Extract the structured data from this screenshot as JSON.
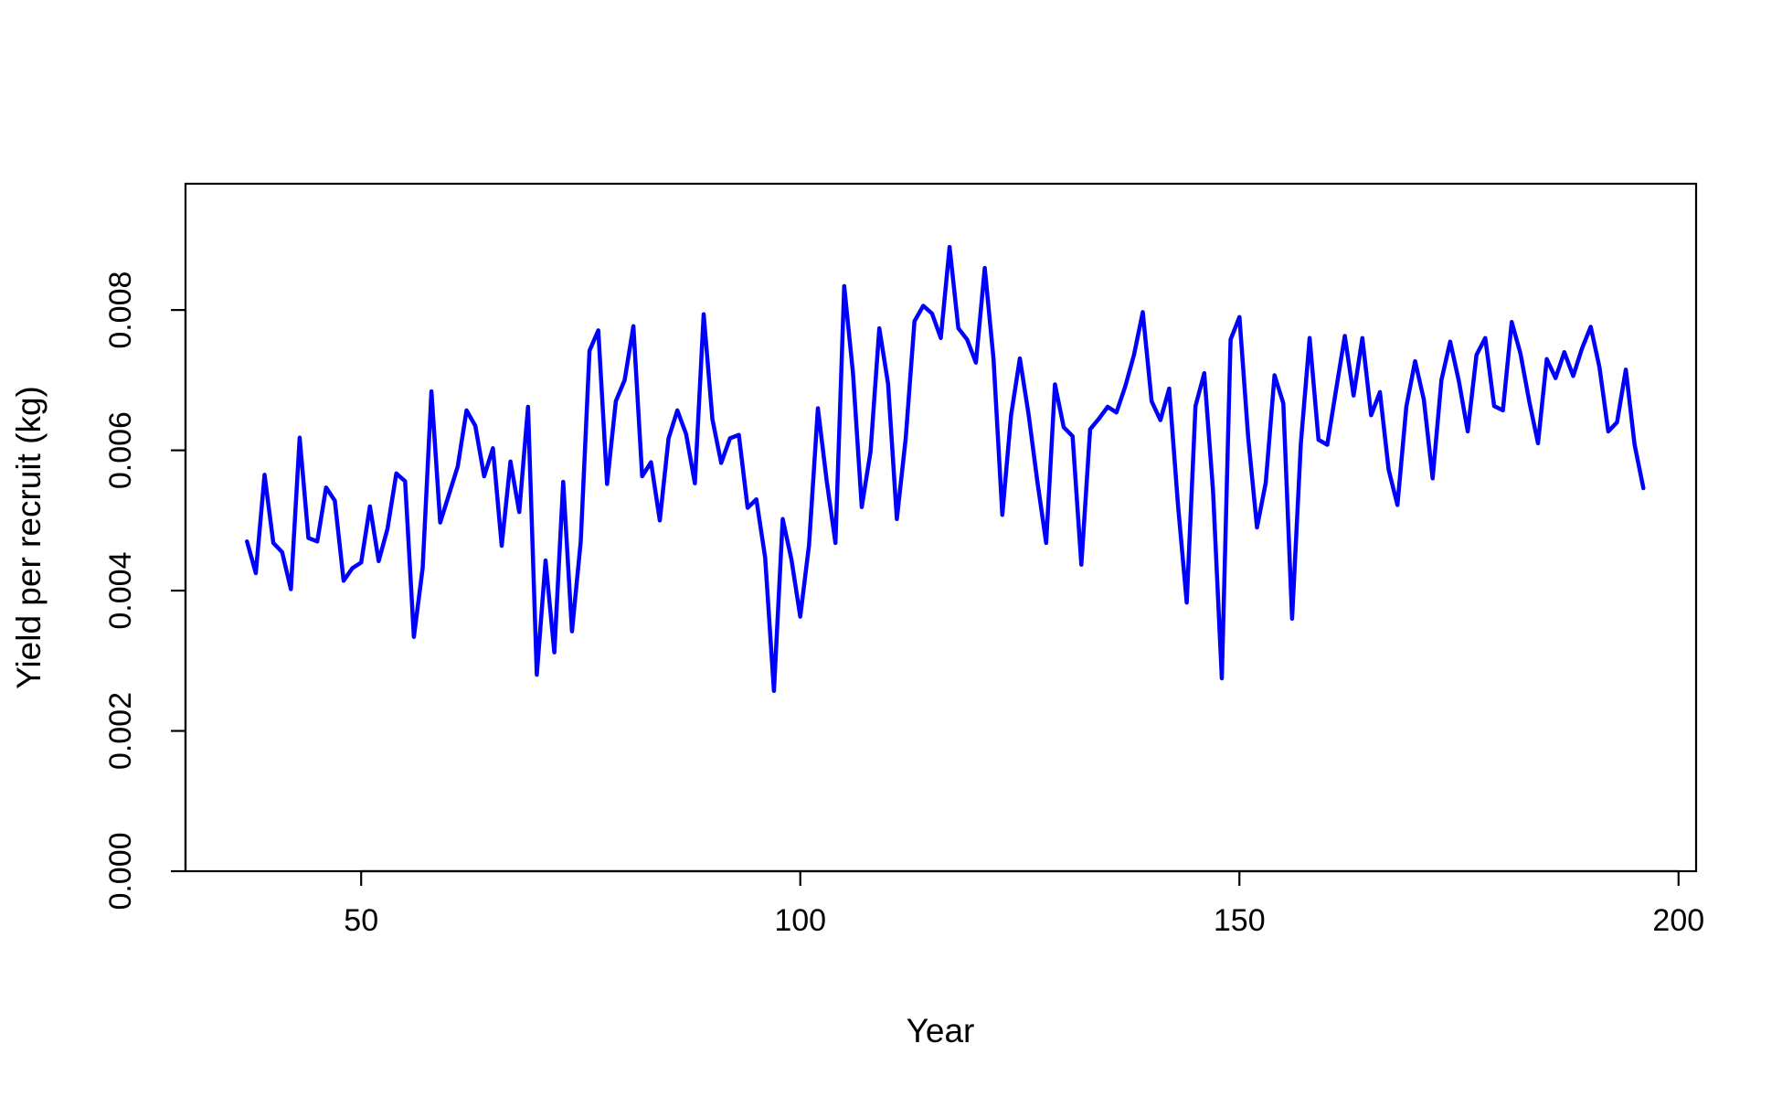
{
  "chart_data": {
    "type": "line",
    "title": "",
    "xlabel": "Year",
    "ylabel": "Yield per recruit (kg)",
    "xlim": [
      30,
      202
    ],
    "ylim": [
      0,
      0.0098
    ],
    "x_ticks": [
      50,
      100,
      150,
      200
    ],
    "x_tick_labels": [
      "50",
      "100",
      "150",
      "200"
    ],
    "y_ticks": [
      0,
      0.002,
      0.004,
      0.006,
      0.008
    ],
    "y_tick_labels": [
      "0.000",
      "0.002",
      "0.004",
      "0.006",
      "0.008"
    ],
    "grid": false,
    "legend": "none",
    "line_color": "#0000ff",
    "series": [
      {
        "x_start": 37,
        "x_step": 1,
        "values": [
          0.0047,
          0.00425,
          0.00565,
          0.00468,
          0.00455,
          0.00402,
          0.00618,
          0.00475,
          0.0047,
          0.00547,
          0.00528,
          0.00414,
          0.00432,
          0.0044,
          0.0052,
          0.00442,
          0.00488,
          0.00567,
          0.00556,
          0.00334,
          0.00432,
          0.00684,
          0.00497,
          0.00537,
          0.00577,
          0.00657,
          0.00635,
          0.00563,
          0.00603,
          0.00464,
          0.00584,
          0.00512,
          0.00662,
          0.0028,
          0.00443,
          0.00312,
          0.00555,
          0.00342,
          0.0047,
          0.00742,
          0.00771,
          0.00552,
          0.0067,
          0.007,
          0.00777,
          0.00563,
          0.00583,
          0.005,
          0.00617,
          0.00657,
          0.00623,
          0.00553,
          0.00794,
          0.00644,
          0.00582,
          0.00617,
          0.00622,
          0.00518,
          0.0053,
          0.00447,
          0.00257,
          0.00502,
          0.00444,
          0.00363,
          0.00465,
          0.0066,
          0.00557,
          0.00468,
          0.00834,
          0.0071,
          0.00519,
          0.00598,
          0.00774,
          0.00695,
          0.00502,
          0.00617,
          0.00784,
          0.00806,
          0.00795,
          0.0076,
          0.0089,
          0.00774,
          0.00758,
          0.00725,
          0.0086,
          0.0073,
          0.00508,
          0.0065,
          0.00731,
          0.00651,
          0.00555,
          0.00468,
          0.00694,
          0.00633,
          0.0062,
          0.00437,
          0.0063,
          0.00645,
          0.00662,
          0.00654,
          0.00691,
          0.00736,
          0.00797,
          0.0067,
          0.00643,
          0.00688,
          0.00523,
          0.00383,
          0.00663,
          0.0071,
          0.00542,
          0.00275,
          0.00758,
          0.0079,
          0.00618,
          0.0049,
          0.00554,
          0.00707,
          0.00667,
          0.0036,
          0.0061,
          0.0076,
          0.00615,
          0.00608,
          0.00686,
          0.00763,
          0.00678,
          0.0076,
          0.0065,
          0.00683,
          0.00572,
          0.00522,
          0.00662,
          0.00727,
          0.00672,
          0.0056,
          0.007,
          0.00755,
          0.00698,
          0.00627,
          0.00736,
          0.0076,
          0.00663,
          0.00657,
          0.00783,
          0.00738,
          0.0067,
          0.0061,
          0.0073,
          0.00703,
          0.0074,
          0.00706,
          0.00745,
          0.00776,
          0.00718,
          0.00627,
          0.0064,
          0.00715,
          0.00608,
          0.00546
        ]
      }
    ]
  }
}
